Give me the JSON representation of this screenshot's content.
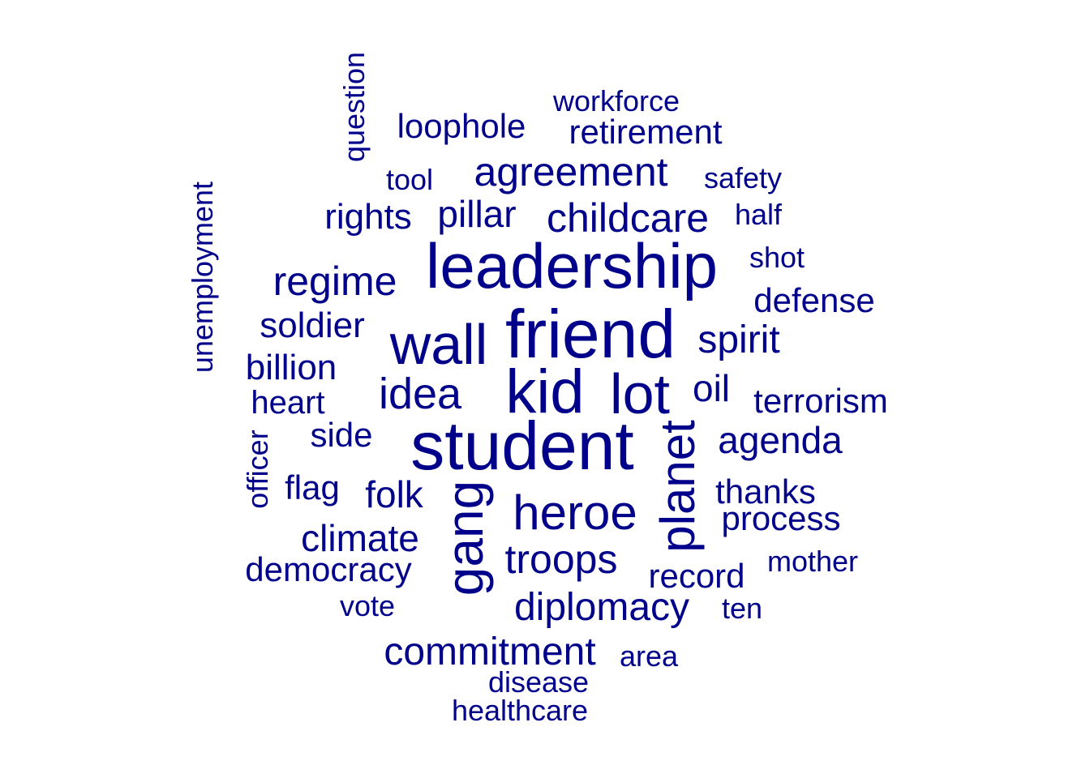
{
  "color": "#00008B",
  "words": [
    {
      "text": "student"
    },
    {
      "text": "friend"
    },
    {
      "text": "leadership"
    },
    {
      "text": "kid"
    },
    {
      "text": "lot"
    },
    {
      "text": "wall"
    },
    {
      "text": "gang",
      "rotated": true
    },
    {
      "text": "planet",
      "rotated": true
    },
    {
      "text": "heroe"
    },
    {
      "text": "idea"
    },
    {
      "text": "agreement"
    },
    {
      "text": "troops"
    },
    {
      "text": "childcare"
    },
    {
      "text": "regime"
    },
    {
      "text": "diplomacy"
    },
    {
      "text": "commitment"
    },
    {
      "text": "spirit"
    },
    {
      "text": "agenda"
    },
    {
      "text": "climate"
    },
    {
      "text": "pillar"
    },
    {
      "text": "rights"
    },
    {
      "text": "billion"
    },
    {
      "text": "soldier"
    },
    {
      "text": "retirement"
    },
    {
      "text": "loophole"
    },
    {
      "text": "oil"
    },
    {
      "text": "folk"
    },
    {
      "text": "defense"
    },
    {
      "text": "side"
    },
    {
      "text": "terrorism"
    },
    {
      "text": "democracy"
    },
    {
      "text": "process"
    },
    {
      "text": "heart"
    },
    {
      "text": "thanks"
    },
    {
      "text": "record"
    },
    {
      "text": "flag"
    },
    {
      "text": "unemployment",
      "rotated": true
    },
    {
      "text": "workforce"
    },
    {
      "text": "safety"
    },
    {
      "text": "question",
      "rotated": true
    },
    {
      "text": "officer",
      "rotated": true
    },
    {
      "text": "mother"
    },
    {
      "text": "healthcare"
    },
    {
      "text": "disease"
    },
    {
      "text": "shot"
    },
    {
      "text": "half"
    },
    {
      "text": "tool"
    },
    {
      "text": "vote"
    },
    {
      "text": "ten"
    },
    {
      "text": "area"
    }
  ]
}
